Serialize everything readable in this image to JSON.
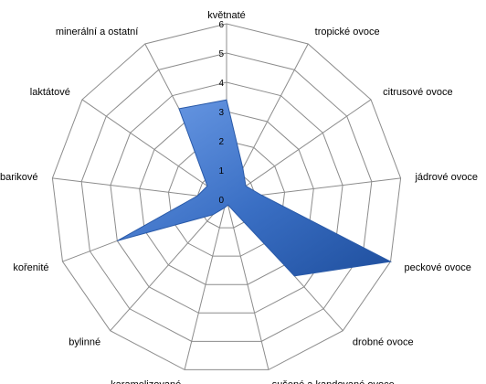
{
  "chart_data": {
    "type": "radar",
    "title": "",
    "categories": [
      "květnaté",
      "tropické ovoce",
      "citrusové ovoce",
      "jádrové ovoce",
      "peckové ovoce",
      "drobné ovoce",
      "sušené a kandované ovoce",
      "karamelizované",
      "bylinné",
      "kořenité",
      "barikové",
      "laktátové",
      "minerální a ostatní"
    ],
    "series": [
      {
        "values": [
          3.4,
          1.2,
          0.8,
          1.2,
          6,
          3.5,
          0.2,
          0.3,
          0.7,
          4,
          1,
          0.8,
          3.5
        ],
        "color": "#3a6fc4"
      }
    ],
    "r_ticks": [
      0,
      1,
      2,
      3,
      4,
      5,
      6
    ],
    "rlim": [
      0,
      6
    ],
    "grid": true,
    "legend": "none"
  }
}
